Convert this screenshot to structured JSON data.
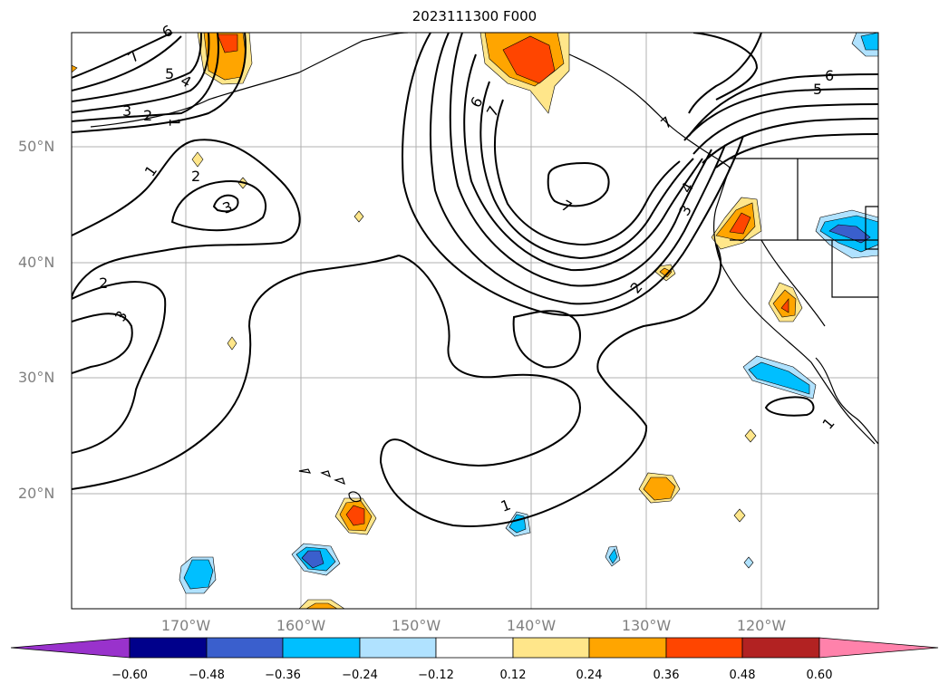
{
  "title": "2023111300 F000",
  "lat_labels": [
    "50°N",
    "40°N",
    "30°N",
    "20°N"
  ],
  "lon_labels": [
    "170°W",
    "160°W",
    "150°W",
    "140°W",
    "130°W",
    "120°W"
  ],
  "colorbar": {
    "ticks": [
      "−0.60",
      "−0.48",
      "−0.36",
      "−0.24",
      "−0.12",
      "0.12",
      "0.24",
      "0.36",
      "0.48",
      "0.60"
    ],
    "colors": [
      "#9932cc",
      "#00008b",
      "#3a5fcd",
      "#00bfff",
      "#b0e2ff",
      "#ffffff",
      "#ffe68a",
      "#ffa500",
      "#ff4500",
      "#b22222",
      "#ff82ab"
    ]
  },
  "contour_labels": [
    "6",
    "7",
    "5",
    "4",
    "3",
    "2",
    "1",
    "1",
    "2",
    "3",
    "2",
    "3",
    "6",
    "7",
    "7",
    "6",
    "5",
    "4",
    "3",
    "2",
    "1",
    "7",
    "1"
  ]
}
